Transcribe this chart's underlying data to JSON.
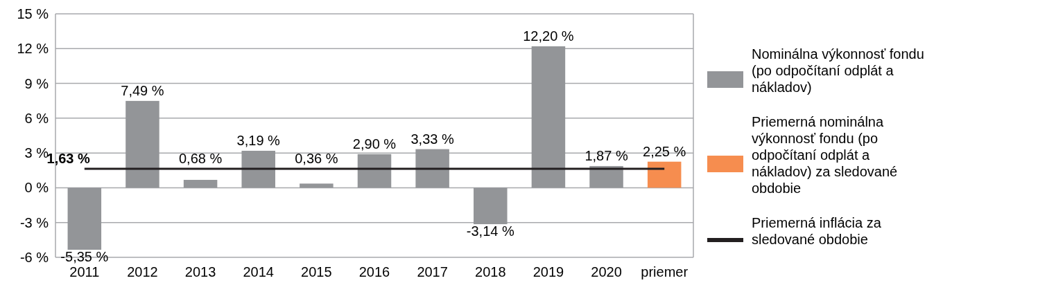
{
  "chart_data": {
    "type": "bar",
    "categories": [
      "2011",
      "2012",
      "2013",
      "2014",
      "2015",
      "2016",
      "2017",
      "2018",
      "2019",
      "2020",
      "priemer"
    ],
    "series": [
      {
        "name": "Nominálna výkonnosť fondu (po odpočítaní odplát a nákladov)",
        "color": "#939598",
        "values": [
          -5.35,
          7.49,
          0.68,
          3.19,
          0.36,
          2.9,
          3.33,
          -3.14,
          12.2,
          1.87,
          null
        ],
        "value_labels": [
          "-5,35 %",
          "7,49 %",
          "0,68 %",
          "3,19 %",
          "0,36 %",
          "2,90 %",
          "3,33 %",
          "-3,14 %",
          "12,20 %",
          "1,87 %",
          null
        ]
      },
      {
        "name": "Priemerná nominálna výkonnosť fondu (po odpočítaní odplát a nákladov) za sledované obdobie",
        "color": "#f68d4f",
        "values": [
          null,
          null,
          null,
          null,
          null,
          null,
          null,
          null,
          null,
          null,
          2.25
        ],
        "value_labels": [
          null,
          null,
          null,
          null,
          null,
          null,
          null,
          null,
          null,
          null,
          "2,25 %"
        ]
      },
      {
        "name": "Priemerná inflácia za sledované obdobie",
        "type": "line",
        "color": "#231f20",
        "values": [
          1.63,
          1.63,
          1.63,
          1.63,
          1.63,
          1.63,
          1.63,
          1.63,
          1.63,
          1.63,
          1.63
        ]
      }
    ],
    "annotations": [
      {
        "text": "1,63 %",
        "x": "2011",
        "y": 1.63
      }
    ],
    "ylim": [
      -6,
      15
    ],
    "yticks": [
      {
        "value": -6,
        "label": "-6 %"
      },
      {
        "value": -3,
        "label": "-3 %"
      },
      {
        "value": 0,
        "label": "0 %"
      },
      {
        "value": 3,
        "label": "3 %"
      },
      {
        "value": 6,
        "label": "6 %"
      },
      {
        "value": 9,
        "label": "9 %"
      },
      {
        "value": 12,
        "label": "12 %"
      },
      {
        "value": 15,
        "label": "15 %"
      }
    ],
    "grid": "y",
    "legend": "right"
  }
}
